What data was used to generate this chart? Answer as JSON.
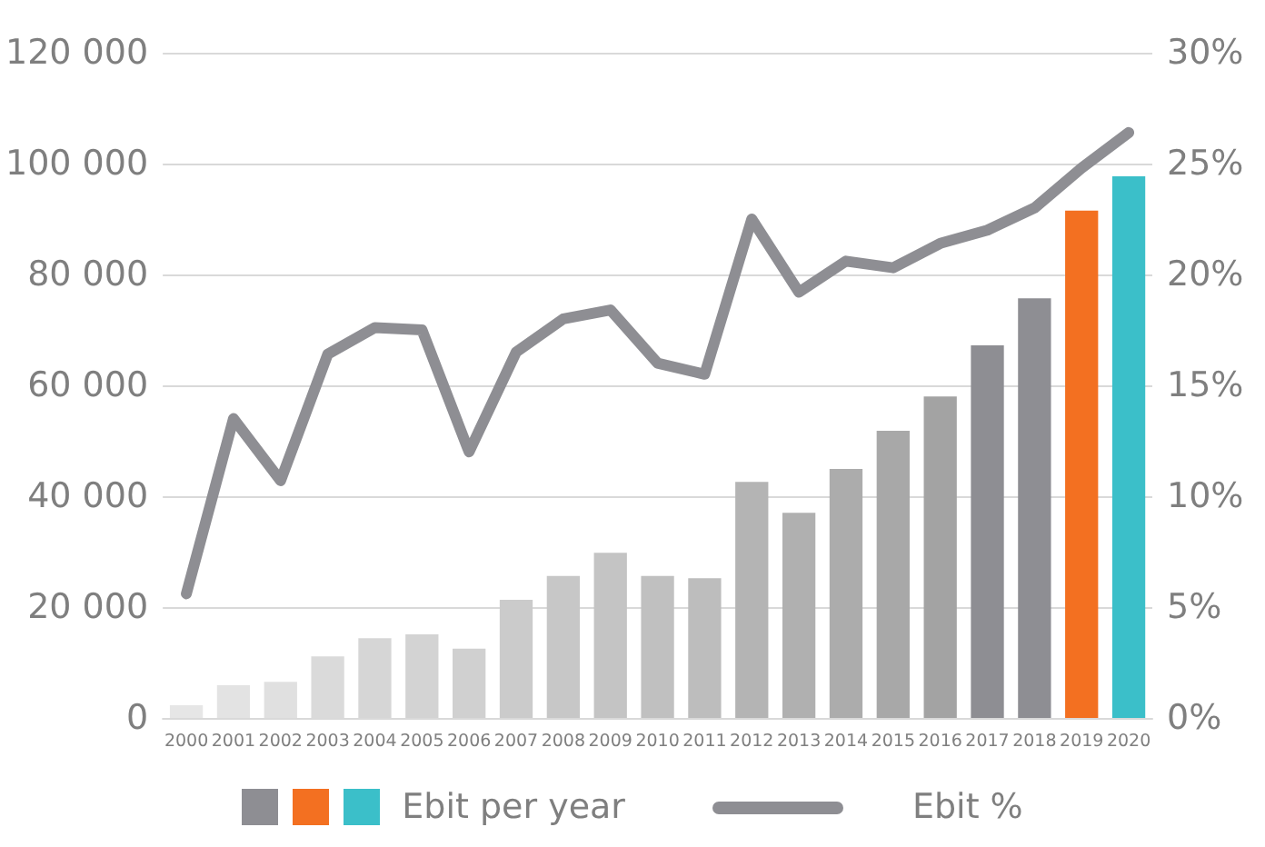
{
  "chart_data": {
    "type": "bar",
    "categories": [
      "2000",
      "2001",
      "2002",
      "2003",
      "2004",
      "2005",
      "2006",
      "2007",
      "2008",
      "2009",
      "2010",
      "2011",
      "2012",
      "2013",
      "2014",
      "2015",
      "2016",
      "2017",
      "2018",
      "2019",
      "2020"
    ],
    "series": [
      {
        "name": "Ebit per year",
        "colors": [
          "#e6e6e6",
          "#e3e3e3",
          "#e0e0e0",
          "#dadada",
          "#d6d6d6",
          "#d3d3d3",
          "#d0d0d0",
          "#cbcbcb",
          "#c7c7c7",
          "#c4c4c4",
          "#c0c0c0",
          "#bdbdbd",
          "#b4b4b4",
          "#b0b0b0",
          "#acacac",
          "#a8a8a8",
          "#a3a3a3",
          "#8e8e93",
          "#8e8e93",
          "#f37021",
          "#3bbfc9"
        ],
        "values": [
          2300,
          5900,
          6500,
          11100,
          14400,
          15100,
          12500,
          21300,
          25600,
          29800,
          25600,
          25200,
          42600,
          37000,
          44900,
          51800,
          58000,
          67200,
          75700,
          91500,
          97700
        ]
      },
      {
        "name": "Ebit %",
        "type": "line",
        "axis": "y2",
        "color": "#8e8e93",
        "values": [
          5.6,
          13.5,
          10.7,
          16.4,
          17.6,
          17.5,
          12.0,
          16.5,
          18.0,
          18.4,
          16.0,
          15.5,
          22.5,
          19.2,
          20.6,
          20.3,
          21.4,
          22.0,
          23.0,
          24.8,
          26.4
        ]
      }
    ],
    "ylim": [
      0,
      120000
    ],
    "yticks": [
      {
        "value": 0,
        "label": "0"
      },
      {
        "value": 20000,
        "label": "20 000"
      },
      {
        "value": 40000,
        "label": "40 000"
      },
      {
        "value": 60000,
        "label": "60 000"
      },
      {
        "value": 80000,
        "label": "80 000"
      },
      {
        "value": 100000,
        "label": "100 000"
      },
      {
        "value": 120000,
        "label": "120 000"
      }
    ],
    "y2lim": [
      0,
      30
    ],
    "y2ticks": [
      {
        "value": 0,
        "label": "0%"
      },
      {
        "value": 5,
        "label": "5%"
      },
      {
        "value": 10,
        "label": "10%"
      },
      {
        "value": 15,
        "label": "15%"
      },
      {
        "value": 20,
        "label": "20%"
      },
      {
        "value": 25,
        "label": "25%"
      },
      {
        "value": 30,
        "label": "30%"
      }
    ],
    "grid": "y",
    "legend": "bottom",
    "marker": "none",
    "line_style": "solid"
  }
}
